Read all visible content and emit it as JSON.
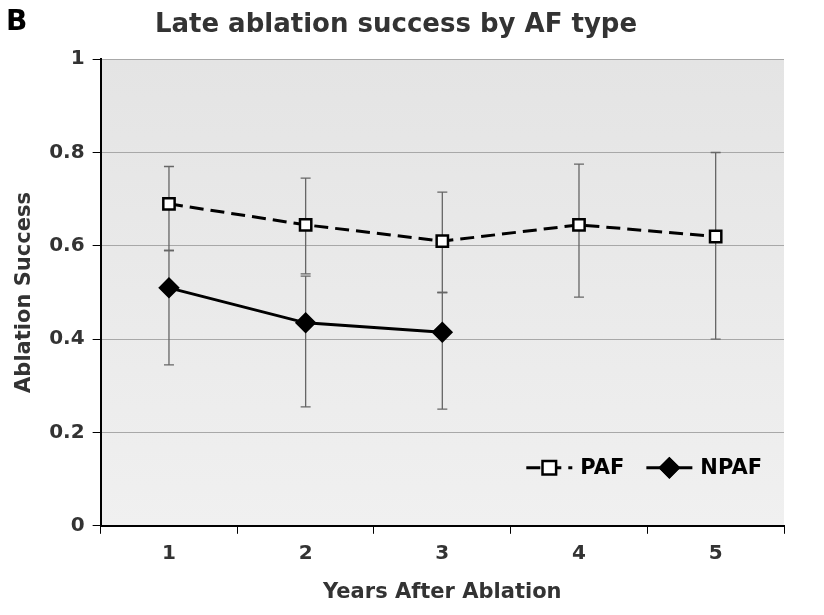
{
  "chart_data": {
    "type": "line",
    "title": "Late ablation success by AF type",
    "panel_label": "B",
    "x_label": "Years After Ablation",
    "y_label": "Ablation Success",
    "categories": [
      "1",
      "2",
      "3",
      "4",
      "5"
    ],
    "series": [
      {
        "name": "PAF",
        "color": "#000000",
        "marker": "square",
        "line_style": "dashed",
        "values": [
          0.69,
          0.645,
          0.61,
          0.645,
          0.62
        ],
        "error_low": [
          0.59,
          0.54,
          0.5,
          0.49,
          0.4
        ],
        "error_high": [
          0.77,
          0.745,
          0.715,
          0.775,
          0.8
        ]
      },
      {
        "name": "NPAF",
        "color": "#000000",
        "marker": "diamond",
        "line_style": "solid",
        "values": [
          0.51,
          0.435,
          0.415,
          null,
          null
        ],
        "error_low": [
          0.345,
          0.255,
          0.25,
          null,
          null
        ],
        "error_high": [
          0.59,
          0.535,
          0.5,
          null,
          null
        ]
      }
    ],
    "ylim": [
      0,
      1
    ],
    "yticks": [
      0,
      0.2,
      0.4,
      0.6,
      0.8,
      1
    ],
    "grid": true,
    "legend": "lower right"
  }
}
